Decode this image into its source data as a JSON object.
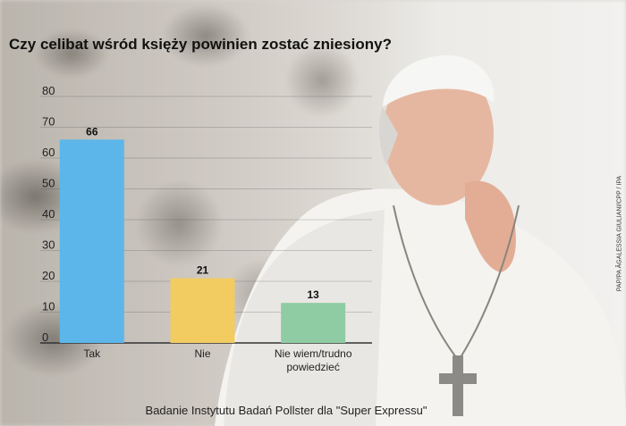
{
  "title": "Czy celibat wśród księży powinien zostać zniesiony?",
  "photo_credit": "PAP/PA ÂGALESSIA GIULIANI/CPP / IPA",
  "source": "Badanie Instytutu Badań Pollster dla \"Super Expressu\"",
  "chart_data": {
    "type": "bar",
    "categories": [
      "Tak",
      "Nie",
      "Nie wiem/trudno powiedzieć"
    ],
    "category_lines": [
      [
        "Tak"
      ],
      [
        "Nie"
      ],
      [
        "Nie wiem/trudno",
        "powiedzieć"
      ]
    ],
    "values": [
      66,
      21,
      13
    ],
    "data_labels": [
      "66",
      "21",
      "13"
    ],
    "colors": [
      "#5cb6ea",
      "#f2cc61",
      "#8fcca3"
    ],
    "ylim": [
      0,
      80
    ],
    "yticks": [
      0,
      10,
      20,
      30,
      40,
      50,
      60,
      70,
      80
    ],
    "grid": true,
    "xlabel": "",
    "ylabel": ""
  }
}
